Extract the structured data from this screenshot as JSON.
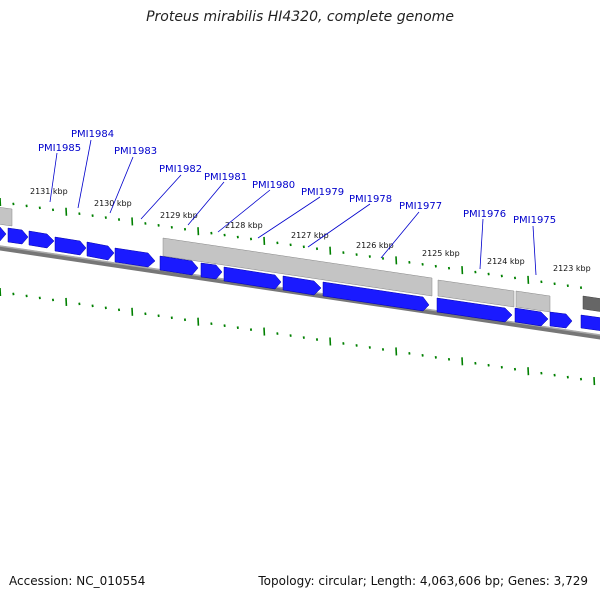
{
  "title": "Proteus mirabilis HI4320, complete genome",
  "footer": {
    "accession": "Accession: NC_010554",
    "summary": "Topology: circular; Length: 4,063,606 bp; Genes: 3,729"
  },
  "tick_labels": [
    "2131 kbp",
    "2130 kbp",
    "2129 kbp",
    "2128 kbp",
    "2127 kbp",
    "2126 kbp",
    "2125 kbp",
    "2124 kbp",
    "2123 kbp"
  ],
  "gene_labels": [
    "PMI1985",
    "PMI1984",
    "PMI1983",
    "PMI1982",
    "PMI1981",
    "PMI1980",
    "PMI1979",
    "PMI1978",
    "PMI1977",
    "PMI1976",
    "PMI1975"
  ],
  "colors": {
    "cds": "#0000ff",
    "cds_shade": "#3a3aff",
    "backbone_dark": "#555555",
    "gene_bar": "#c0c0c0",
    "tick": "#008000",
    "label": "#0000cc"
  }
}
